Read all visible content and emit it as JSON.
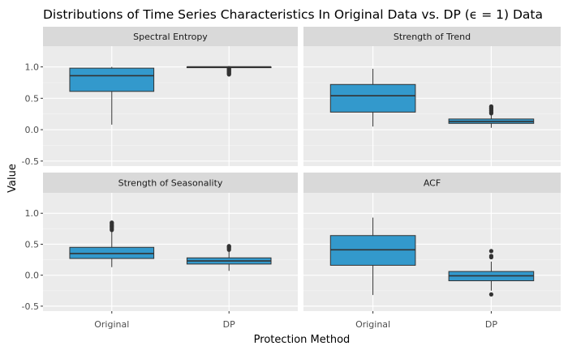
{
  "chart_data": {
    "type": "box",
    "title": "Distributions of Time Series Characteristics In Original Data vs. DP (ϵ = 1) Data",
    "xlabel": "Protection Method",
    "ylabel": "Value",
    "categories": [
      "Original",
      "DP"
    ],
    "yticks": [
      -0.5,
      0.0,
      0.5,
      1.0
    ],
    "ytick_labels": [
      "-0.5",
      "0.0",
      "0.5",
      "1.0"
    ],
    "ylim": [
      -0.58,
      1.33
    ],
    "fill_color": "#3399cc",
    "panel_bg": "#ebebeb",
    "strip_bg": "#d9d9d9",
    "grid": true,
    "panels": [
      {
        "name": "Spectral Entropy",
        "boxes": [
          {
            "category": "Original",
            "q1": 0.61,
            "median": 0.86,
            "q3": 0.98,
            "whisker_low": 0.08,
            "whisker_high": 1.0,
            "outliers": []
          },
          {
            "category": "DP",
            "q1": 1.0,
            "median": 1.0,
            "q3": 1.0,
            "whisker_low": 0.99,
            "whisker_high": 1.0,
            "outliers": [
              0.98,
              0.97,
              0.96,
              0.95,
              0.94,
              0.93,
              0.92,
              0.91,
              0.9,
              0.89,
              0.88
            ]
          }
        ]
      },
      {
        "name": "Strength of Trend",
        "boxes": [
          {
            "category": "Original",
            "q1": 0.28,
            "median": 0.54,
            "q3": 0.72,
            "whisker_low": 0.05,
            "whisker_high": 0.97,
            "outliers": []
          },
          {
            "category": "DP",
            "q1": 0.1,
            "median": 0.13,
            "q3": 0.17,
            "whisker_low": 0.03,
            "whisker_high": 0.25,
            "outliers": [
              0.26,
              0.28,
              0.3,
              0.31,
              0.33,
              0.34,
              0.36,
              0.37
            ]
          }
        ]
      },
      {
        "name": "Strength of Seasonality",
        "boxes": [
          {
            "category": "Original",
            "q1": 0.27,
            "median": 0.35,
            "q3": 0.45,
            "whisker_low": 0.13,
            "whisker_high": 0.71,
            "outliers": [
              0.73,
              0.75,
              0.77,
              0.79,
              0.8,
              0.82,
              0.84,
              0.85
            ]
          },
          {
            "category": "DP",
            "q1": 0.18,
            "median": 0.23,
            "q3": 0.28,
            "whisker_low": 0.07,
            "whisker_high": 0.4,
            "outliers": [
              0.41,
              0.43,
              0.45,
              0.46,
              0.47
            ]
          }
        ]
      },
      {
        "name": "ACF",
        "boxes": [
          {
            "category": "Original",
            "q1": 0.16,
            "median": 0.41,
            "q3": 0.64,
            "whisker_low": -0.32,
            "whisker_high": 0.93,
            "outliers": []
          },
          {
            "category": "DP",
            "q1": -0.09,
            "median": -0.01,
            "q3": 0.06,
            "whisker_low": -0.25,
            "whisker_high": 0.22,
            "outliers": [
              0.29,
              0.31,
              0.39,
              -0.31
            ]
          }
        ]
      }
    ]
  }
}
